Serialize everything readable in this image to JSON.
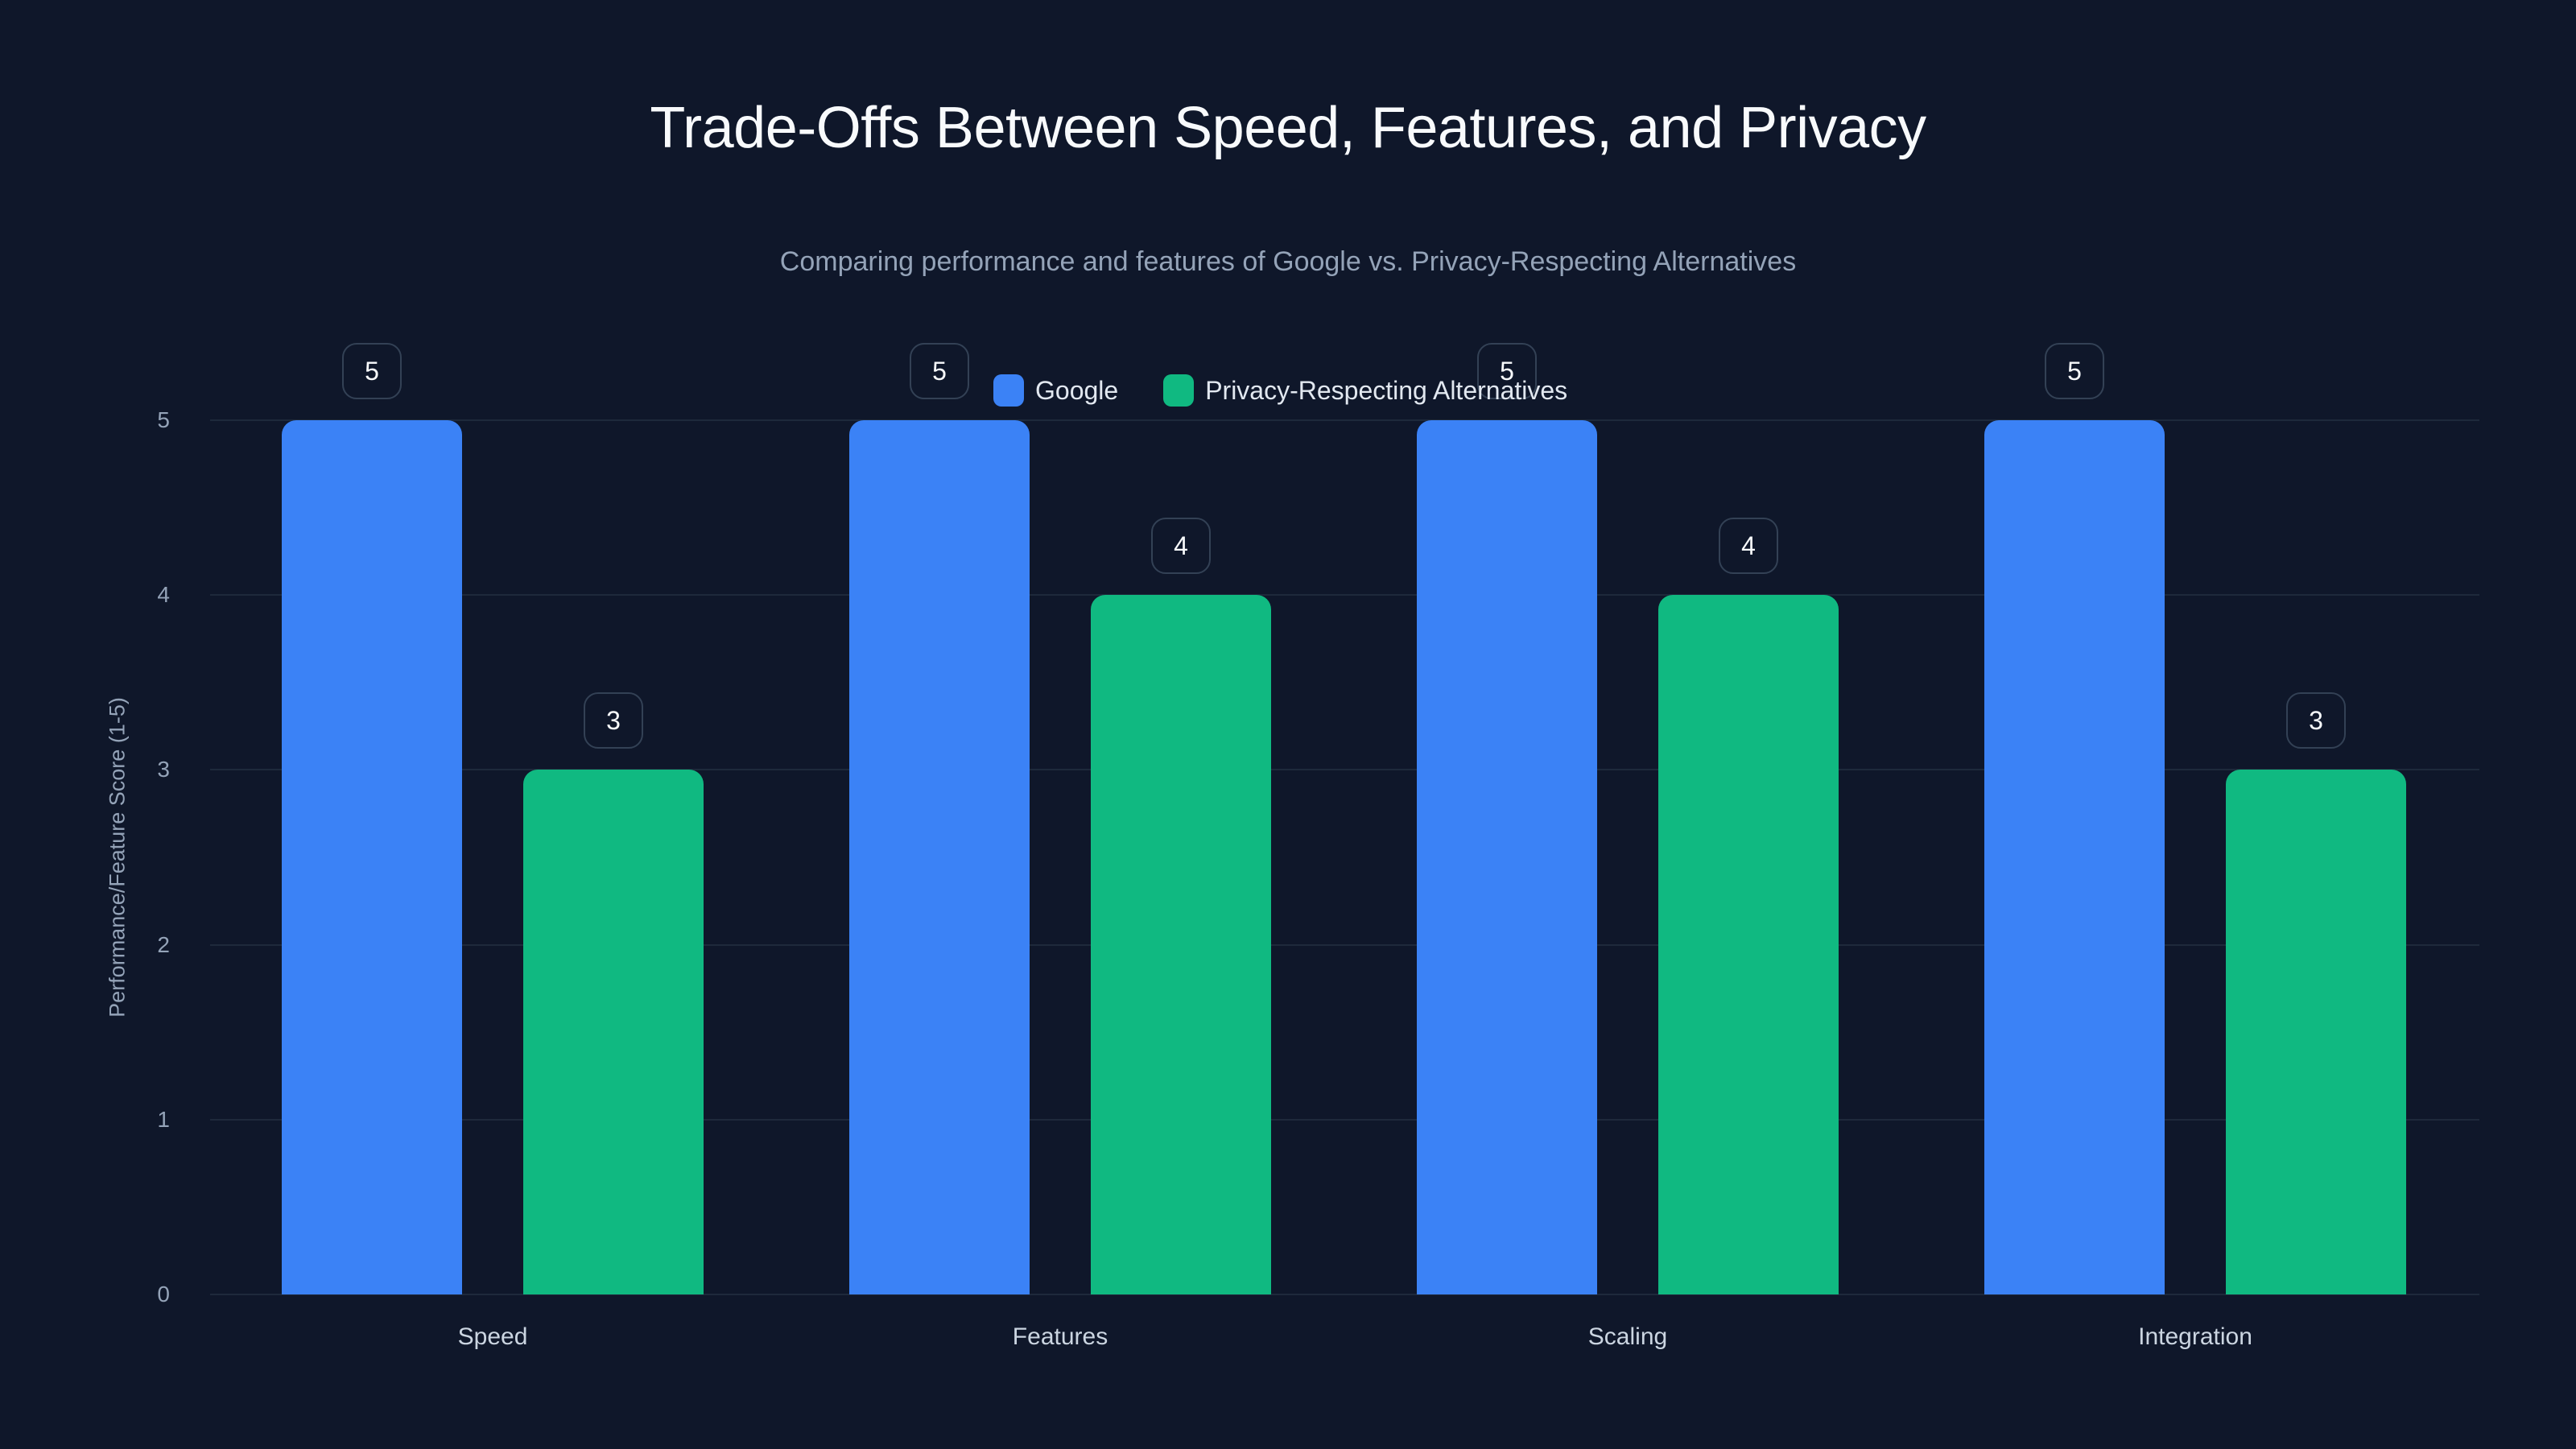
{
  "header": {
    "title": "Trade-Offs Between Speed, Features, and Privacy",
    "subtitle": "Comparing performance and features of Google vs. Privacy-Respecting Alternatives"
  },
  "legend": {
    "items": [
      {
        "label": "Google",
        "color": "#3b82f6"
      },
      {
        "label": "Privacy-Respecting Alternatives",
        "color": "#10b981"
      }
    ]
  },
  "axes": {
    "ylabel": "Performance/Feature Score (1-5)",
    "yticks": [
      "0",
      "1",
      "2",
      "3",
      "4",
      "5"
    ]
  },
  "chart_data": {
    "type": "bar",
    "title": "Trade-Offs Between Speed, Features, and Privacy",
    "subtitle": "Comparing performance and features of Google vs. Privacy-Respecting Alternatives",
    "categories": [
      "Speed",
      "Features",
      "Scaling",
      "Integration"
    ],
    "series": [
      {
        "name": "Google",
        "color": "#3b82f6",
        "values": [
          5,
          5,
          5,
          5
        ]
      },
      {
        "name": "Privacy-Respecting Alternatives",
        "color": "#10b981",
        "values": [
          3,
          4,
          4,
          3
        ]
      }
    ],
    "xlabel": "",
    "ylabel": "Performance/Feature Score (1-5)",
    "ylim": [
      0,
      5
    ],
    "yticks": [
      0,
      1,
      2,
      3,
      4,
      5
    ],
    "grid": true,
    "legend_position": "top-center",
    "data_labels": true
  }
}
